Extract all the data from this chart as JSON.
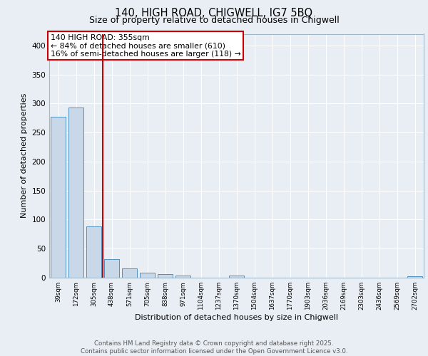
{
  "title_line1": "140, HIGH ROAD, CHIGWELL, IG7 5BQ",
  "title_line2": "Size of property relative to detached houses in Chigwell",
  "xlabel": "Distribution of detached houses by size in Chigwell",
  "ylabel": "Number of detached properties",
  "annotation_line1": "140 HIGH ROAD: 355sqm",
  "annotation_line2": "← 84% of detached houses are smaller (610)",
  "annotation_line3": "16% of semi-detached houses are larger (118) →",
  "categories": [
    "39sqm",
    "172sqm",
    "305sqm",
    "438sqm",
    "571sqm",
    "705sqm",
    "838sqm",
    "971sqm",
    "1104sqm",
    "1237sqm",
    "1370sqm",
    "1504sqm",
    "1637sqm",
    "1770sqm",
    "1903sqm",
    "2036sqm",
    "2169sqm",
    "2303sqm",
    "2436sqm",
    "2569sqm",
    "2702sqm"
  ],
  "values": [
    277,
    293,
    88,
    32,
    16,
    8,
    6,
    4,
    0,
    0,
    4,
    0,
    0,
    0,
    0,
    0,
    0,
    0,
    0,
    0,
    3
  ],
  "bar_color": "#c8d8e8",
  "bar_edge_color": "#5090c0",
  "vline_color": "#cc0000",
  "vline_x": 2.5,
  "ylim": [
    0,
    420
  ],
  "yticks": [
    0,
    50,
    100,
    150,
    200,
    250,
    300,
    350,
    400
  ],
  "background_color": "#e8eef4",
  "grid_color": "#ffffff",
  "footer_line1": "Contains HM Land Registry data © Crown copyright and database right 2025.",
  "footer_line2": "Contains public sector information licensed under the Open Government Licence v3.0."
}
